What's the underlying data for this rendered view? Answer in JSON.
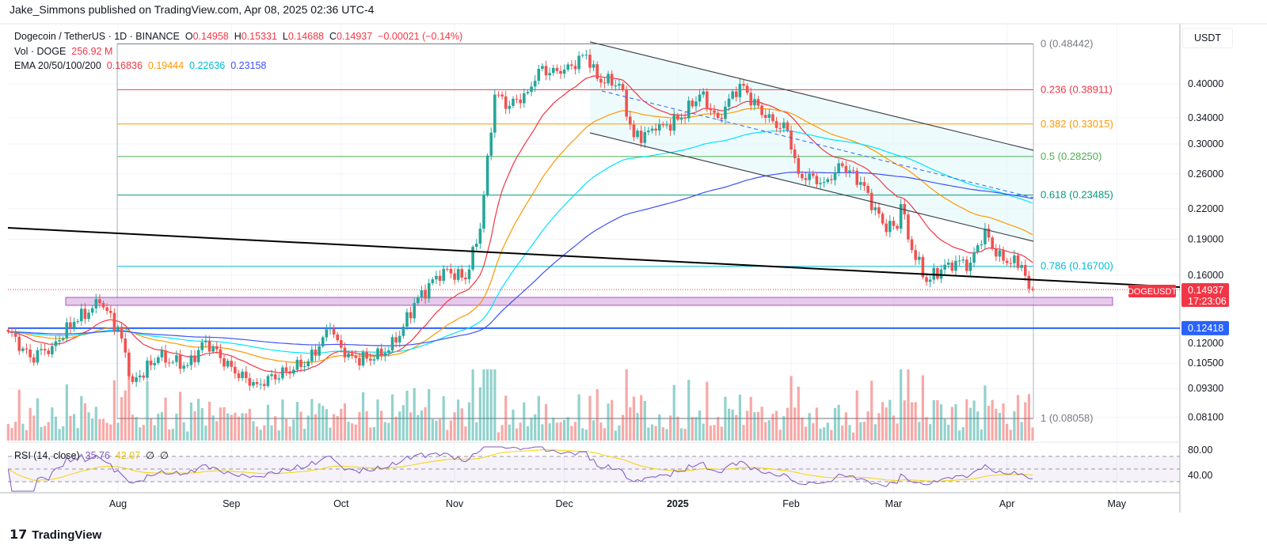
{
  "publisher": "Jake_Simmons published on TradingView.com, Apr 08, 2025 02:36 UTC-4",
  "legend": {
    "symbol": "Dogecoin / TetherUS · 1D · BINANCE",
    "o_label": "O",
    "o": "0.14958",
    "h_label": "H",
    "h": "0.15331",
    "l_label": "L",
    "l": "0.14688",
    "c_label": "C",
    "c": "0.14937",
    "change": "−0.00021 (−0.14%)",
    "vol_label": "Vol · DOGE",
    "vol": "256.92 M",
    "ema_label": "EMA 20/50/100/200",
    "ema20": "0.16836",
    "ema50": "0.19444",
    "ema100": "0.22636",
    "ema200": "0.23158"
  },
  "rsi_legend": {
    "label": "RSI (14, close)",
    "rsi": "35.76",
    "ma": "42.07",
    "x1": "∅",
    "x2": "∅"
  },
  "currency": "USDT",
  "price_tag": {
    "symbol": "DOGEUSDT",
    "price": "0.14937",
    "countdown": "17:23:06"
  },
  "support_tag": "0.12418",
  "footer": "TradingView",
  "colors": {
    "up": "#26a69a",
    "down": "#ef5350",
    "ema20": "#f23645",
    "ema50": "#ff9800",
    "ema100": "#00e5ff",
    "ema200": "#3f51f5",
    "rsi": "#7e57c2",
    "rsi_ma": "#f5d400"
  },
  "chart_data": {
    "type": "candlestick",
    "scale": "log",
    "y_ticks": [
      "0.40000",
      "0.34000",
      "0.30000",
      "0.26000",
      "0.22000",
      "0.19000",
      "0.16000",
      "0.12000",
      "0.10500",
      "0.09300",
      "0.08100"
    ],
    "x_ticks": [
      {
        "label": "Aug",
        "date": "2024-08-01"
      },
      {
        "label": "Sep",
        "date": "2024-09-01"
      },
      {
        "label": "Oct",
        "date": "2024-10-01"
      },
      {
        "label": "Nov",
        "date": "2024-11-01"
      },
      {
        "label": "Dec",
        "date": "2024-12-01"
      },
      {
        "label": "2025",
        "date": "2025-01-01"
      },
      {
        "label": "Feb",
        "date": "2025-02-01"
      },
      {
        "label": "Mar",
        "date": "2025-03-01"
      },
      {
        "label": "Apr",
        "date": "2025-04-01"
      },
      {
        "label": "May",
        "date": "2025-05-01"
      }
    ],
    "rsi_ticks": [
      "80.00",
      "40.00"
    ],
    "fib_levels": [
      {
        "label": "0 (0.48442)",
        "price": 0.48442,
        "color": "#787b86"
      },
      {
        "label": "0.236 (0.38911)",
        "price": 0.38911,
        "color": "#f23645"
      },
      {
        "label": "0.382 (0.33015)",
        "price": 0.33015,
        "color": "#ff9800"
      },
      {
        "label": "0.5 (0.28250)",
        "price": 0.2825,
        "color": "#4caf50"
      },
      {
        "label": "0.618 (0.23485)",
        "price": 0.23485,
        "color": "#089981"
      },
      {
        "label": "0.786 (0.16700)",
        "price": 0.167,
        "color": "#00bcd4"
      },
      {
        "label": "1 (0.08058)",
        "price": 0.08058,
        "color": "#787b86"
      }
    ],
    "support_price": 0.12418,
    "approx_closes": [
      [
        "2024-07-02",
        0.122
      ],
      [
        "2024-07-08",
        0.108
      ],
      [
        "2024-07-14",
        0.114
      ],
      [
        "2024-07-20",
        0.128
      ],
      [
        "2024-07-27",
        0.14
      ],
      [
        "2024-08-01",
        0.125
      ],
      [
        "2024-08-05",
        0.096
      ],
      [
        "2024-08-12",
        0.108
      ],
      [
        "2024-08-20",
        0.104
      ],
      [
        "2024-08-25",
        0.117
      ],
      [
        "2024-09-02",
        0.1
      ],
      [
        "2024-09-08",
        0.095
      ],
      [
        "2024-09-16",
        0.101
      ],
      [
        "2024-09-22",
        0.106
      ],
      [
        "2024-09-28",
        0.124
      ],
      [
        "2024-10-02",
        0.108
      ],
      [
        "2024-10-10",
        0.107
      ],
      [
        "2024-10-16",
        0.116
      ],
      [
        "2024-10-21",
        0.14
      ],
      [
        "2024-10-29",
        0.165
      ],
      [
        "2024-11-04",
        0.157
      ],
      [
        "2024-11-08",
        0.2
      ],
      [
        "2024-11-12",
        0.38
      ],
      [
        "2024-11-16",
        0.36
      ],
      [
        "2024-11-21",
        0.385
      ],
      [
        "2024-11-24",
        0.43
      ],
      [
        "2024-11-30",
        0.42
      ],
      [
        "2024-12-07",
        0.46
      ],
      [
        "2024-12-10",
        0.41
      ],
      [
        "2024-12-16",
        0.4
      ],
      [
        "2024-12-20",
        0.31
      ],
      [
        "2024-12-26",
        0.32
      ],
      [
        "2025-01-02",
        0.34
      ],
      [
        "2025-01-07",
        0.38
      ],
      [
        "2025-01-12",
        0.34
      ],
      [
        "2025-01-18",
        0.4
      ],
      [
        "2025-01-25",
        0.34
      ],
      [
        "2025-01-31",
        0.32
      ],
      [
        "2025-02-03",
        0.26
      ],
      [
        "2025-02-10",
        0.25
      ],
      [
        "2025-02-15",
        0.27
      ],
      [
        "2025-02-20",
        0.25
      ],
      [
        "2025-02-26",
        0.205
      ],
      [
        "2025-03-02",
        0.2
      ],
      [
        "2025-03-03",
        0.225
      ],
      [
        "2025-03-05",
        0.19
      ],
      [
        "2025-03-10",
        0.155
      ],
      [
        "2025-03-16",
        0.17
      ],
      [
        "2025-03-22",
        0.17
      ],
      [
        "2025-03-26",
        0.2
      ],
      [
        "2025-03-29",
        0.175
      ],
      [
        "2025-04-05",
        0.168
      ],
      [
        "2025-04-07",
        0.15
      ],
      [
        "2025-04-08",
        0.14937
      ]
    ]
  }
}
